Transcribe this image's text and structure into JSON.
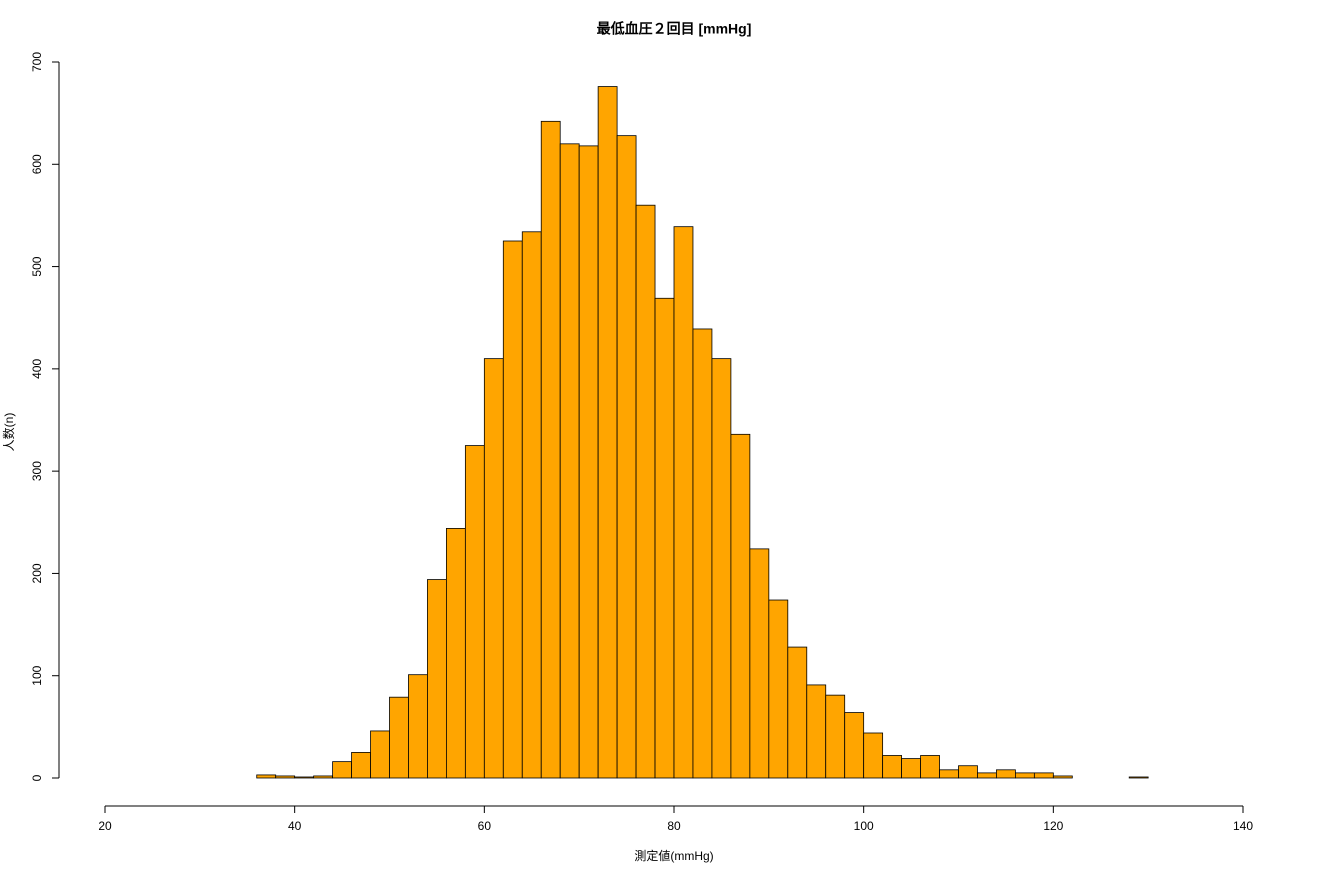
{
  "chart_data": {
    "type": "histogram",
    "title": "最低血圧２回目 [mmHg]",
    "x_label": "測定値(mmHg)",
    "y_label": "人数(n)",
    "bins": [
      36,
      38,
      40,
      42,
      44,
      46,
      48,
      50,
      52,
      54,
      56,
      58,
      60,
      62,
      64,
      66,
      68,
      70,
      72,
      74,
      76,
      78,
      80,
      82,
      84,
      86,
      88,
      90,
      92,
      94,
      96,
      98,
      100,
      102,
      104,
      106,
      108,
      110,
      112,
      114,
      116,
      118,
      120,
      122,
      124,
      126,
      128,
      130
    ],
    "values": [
      3,
      2,
      1,
      2,
      16,
      25,
      46,
      79,
      101,
      194,
      244,
      325,
      410,
      525,
      534,
      642,
      620,
      618,
      676,
      628,
      560,
      469,
      539,
      439,
      410,
      336,
      224,
      174,
      128,
      91,
      81,
      64,
      44,
      22,
      19,
      22,
      8,
      12,
      5,
      8,
      5,
      5,
      2,
      0,
      0,
      0,
      1
    ],
    "color": "#ffa500",
    "xlim": [
      20,
      140
    ],
    "xticks": [
      20,
      40,
      60,
      80,
      100,
      120,
      140
    ],
    "ylim": [
      0,
      700
    ],
    "yticks": [
      0,
      100,
      200,
      300,
      400,
      500,
      600,
      700
    ]
  }
}
